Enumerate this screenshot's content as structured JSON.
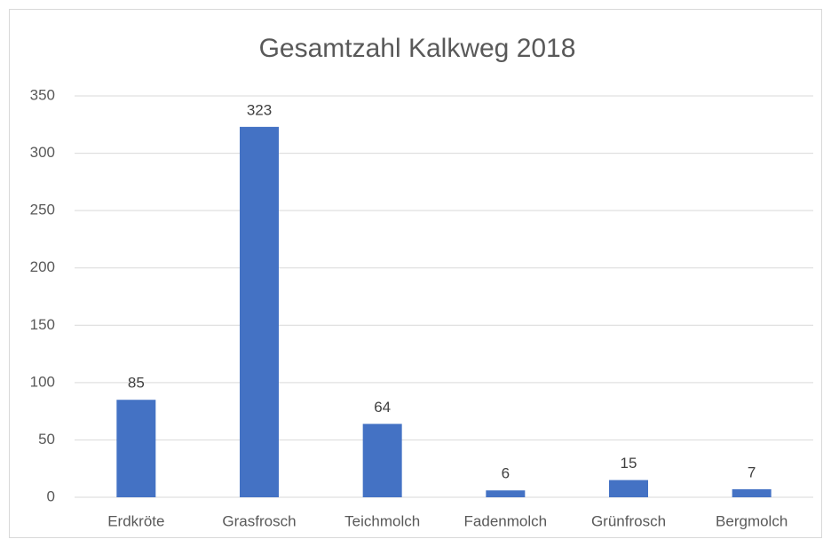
{
  "chart_data": {
    "type": "bar",
    "title": "Gesamtzahl Kalkweg 2018",
    "categories": [
      "Erdkröte",
      "Grasfrosch",
      "Teichmolch",
      "Fadenmolch",
      "Grünfrosch",
      "Bergmolch"
    ],
    "values": [
      85,
      323,
      64,
      6,
      15,
      7
    ],
    "color": "#4472c4",
    "ylim": [
      0,
      350
    ],
    "yticks": [
      0,
      50,
      100,
      150,
      200,
      250,
      300,
      350
    ],
    "grid": true
  }
}
